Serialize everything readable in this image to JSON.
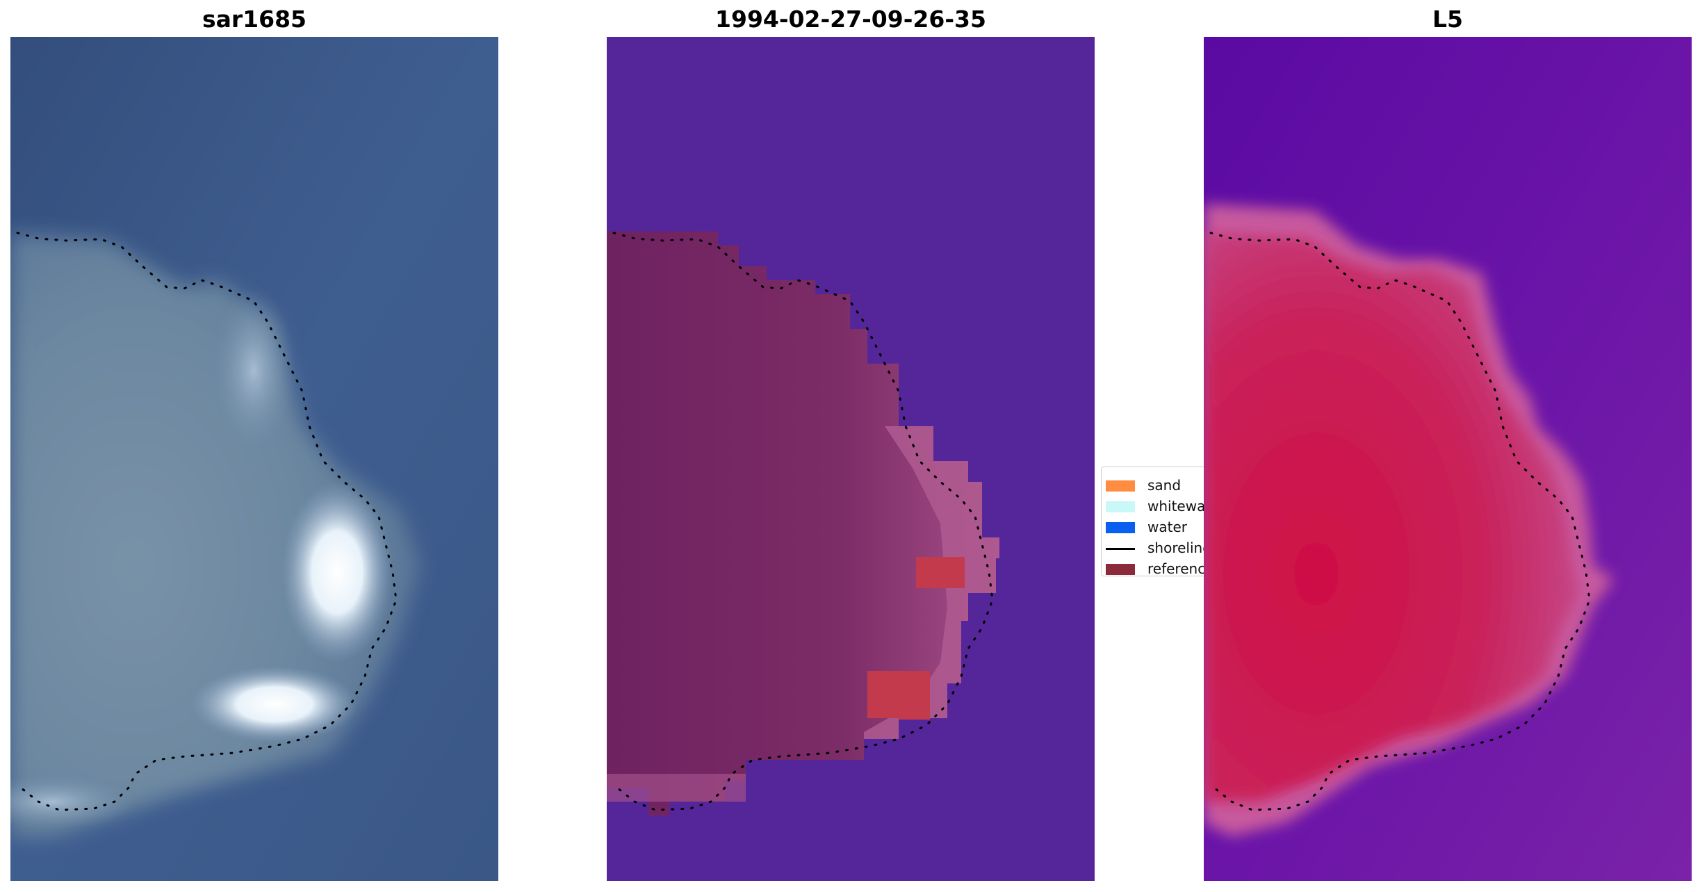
{
  "panels": [
    {
      "title": "sar1685"
    },
    {
      "title": "1994-02-27-09-26-35"
    },
    {
      "title": "L5"
    }
  ],
  "legend": {
    "items": [
      {
        "label": "sand",
        "color": "#ff8c40",
        "kind": "patch"
      },
      {
        "label": "whitewater",
        "color": "#c8f8f8",
        "kind": "patch"
      },
      {
        "label": "water",
        "color": "#0a5ef0",
        "kind": "patch"
      },
      {
        "label": "shoreline",
        "color": "#000000",
        "kind": "line"
      },
      {
        "label": "reference",
        "color": "#8b2a3a",
        "kind": "patch"
      }
    ]
  },
  "colors": {
    "rgb_water": "#3d5a8c",
    "rgb_land": "#6f8aa4",
    "rgb_whitewater": "#eef6fa",
    "classified_water": "#55269a",
    "classified_land": "#752860",
    "classified_edge": "#b05a92",
    "classified_reference": "#c23a4c",
    "index_water": "#6a12a6",
    "index_land": "#cc1e55",
    "index_edge": "#c45a9c"
  }
}
